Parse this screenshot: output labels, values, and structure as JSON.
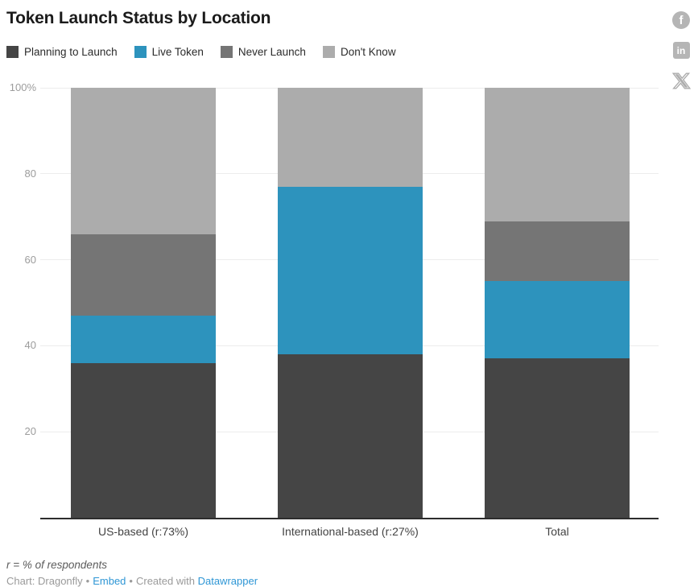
{
  "header": {
    "title": "Token Launch Status by Location"
  },
  "social": {
    "facebook_glyph": "f",
    "linkedin_glyph": "in"
  },
  "footer": {
    "note": "r = % of respondents",
    "credit_chart": "Chart: Dragonfly",
    "separator": "•",
    "embed_link": "Embed",
    "created_with": "Created with",
    "datawrapper_link": "Datawrapper"
  },
  "colors": {
    "planning": "#454545",
    "live": "#2d93bd",
    "never": "#757575",
    "dont_know": "#acacac",
    "gridline": "#ececec",
    "axis": "#2d2d2d",
    "link_blue": "#2e96d5",
    "icon_gray": "#b5b5b5"
  },
  "chart_data": {
    "type": "bar",
    "stacked": true,
    "unit": "%",
    "title": "Token Launch Status by Location",
    "categories": [
      "US-based (r:73%)",
      "International-based (r:27%)",
      "Total"
    ],
    "series": [
      {
        "name": "Planning to Launch",
        "color": "#454545",
        "values": [
          36,
          38,
          37
        ]
      },
      {
        "name": "Live Token",
        "color": "#2d93bd",
        "values": [
          11,
          39,
          18
        ]
      },
      {
        "name": "Never Launch",
        "color": "#757575",
        "values": [
          19,
          0,
          14
        ]
      },
      {
        "name": "Don't Know",
        "color": "#acacac",
        "values": [
          34,
          23,
          31
        ]
      }
    ],
    "ylim": [
      0,
      100
    ],
    "yticks": [
      {
        "value": 100,
        "label": "100%"
      },
      {
        "value": 80,
        "label": "80"
      },
      {
        "value": 60,
        "label": "60"
      },
      {
        "value": 40,
        "label": "40"
      },
      {
        "value": 20,
        "label": "20"
      }
    ],
    "grid": true,
    "legend_position": "top",
    "annotations": [
      "r = % of respondents"
    ]
  }
}
